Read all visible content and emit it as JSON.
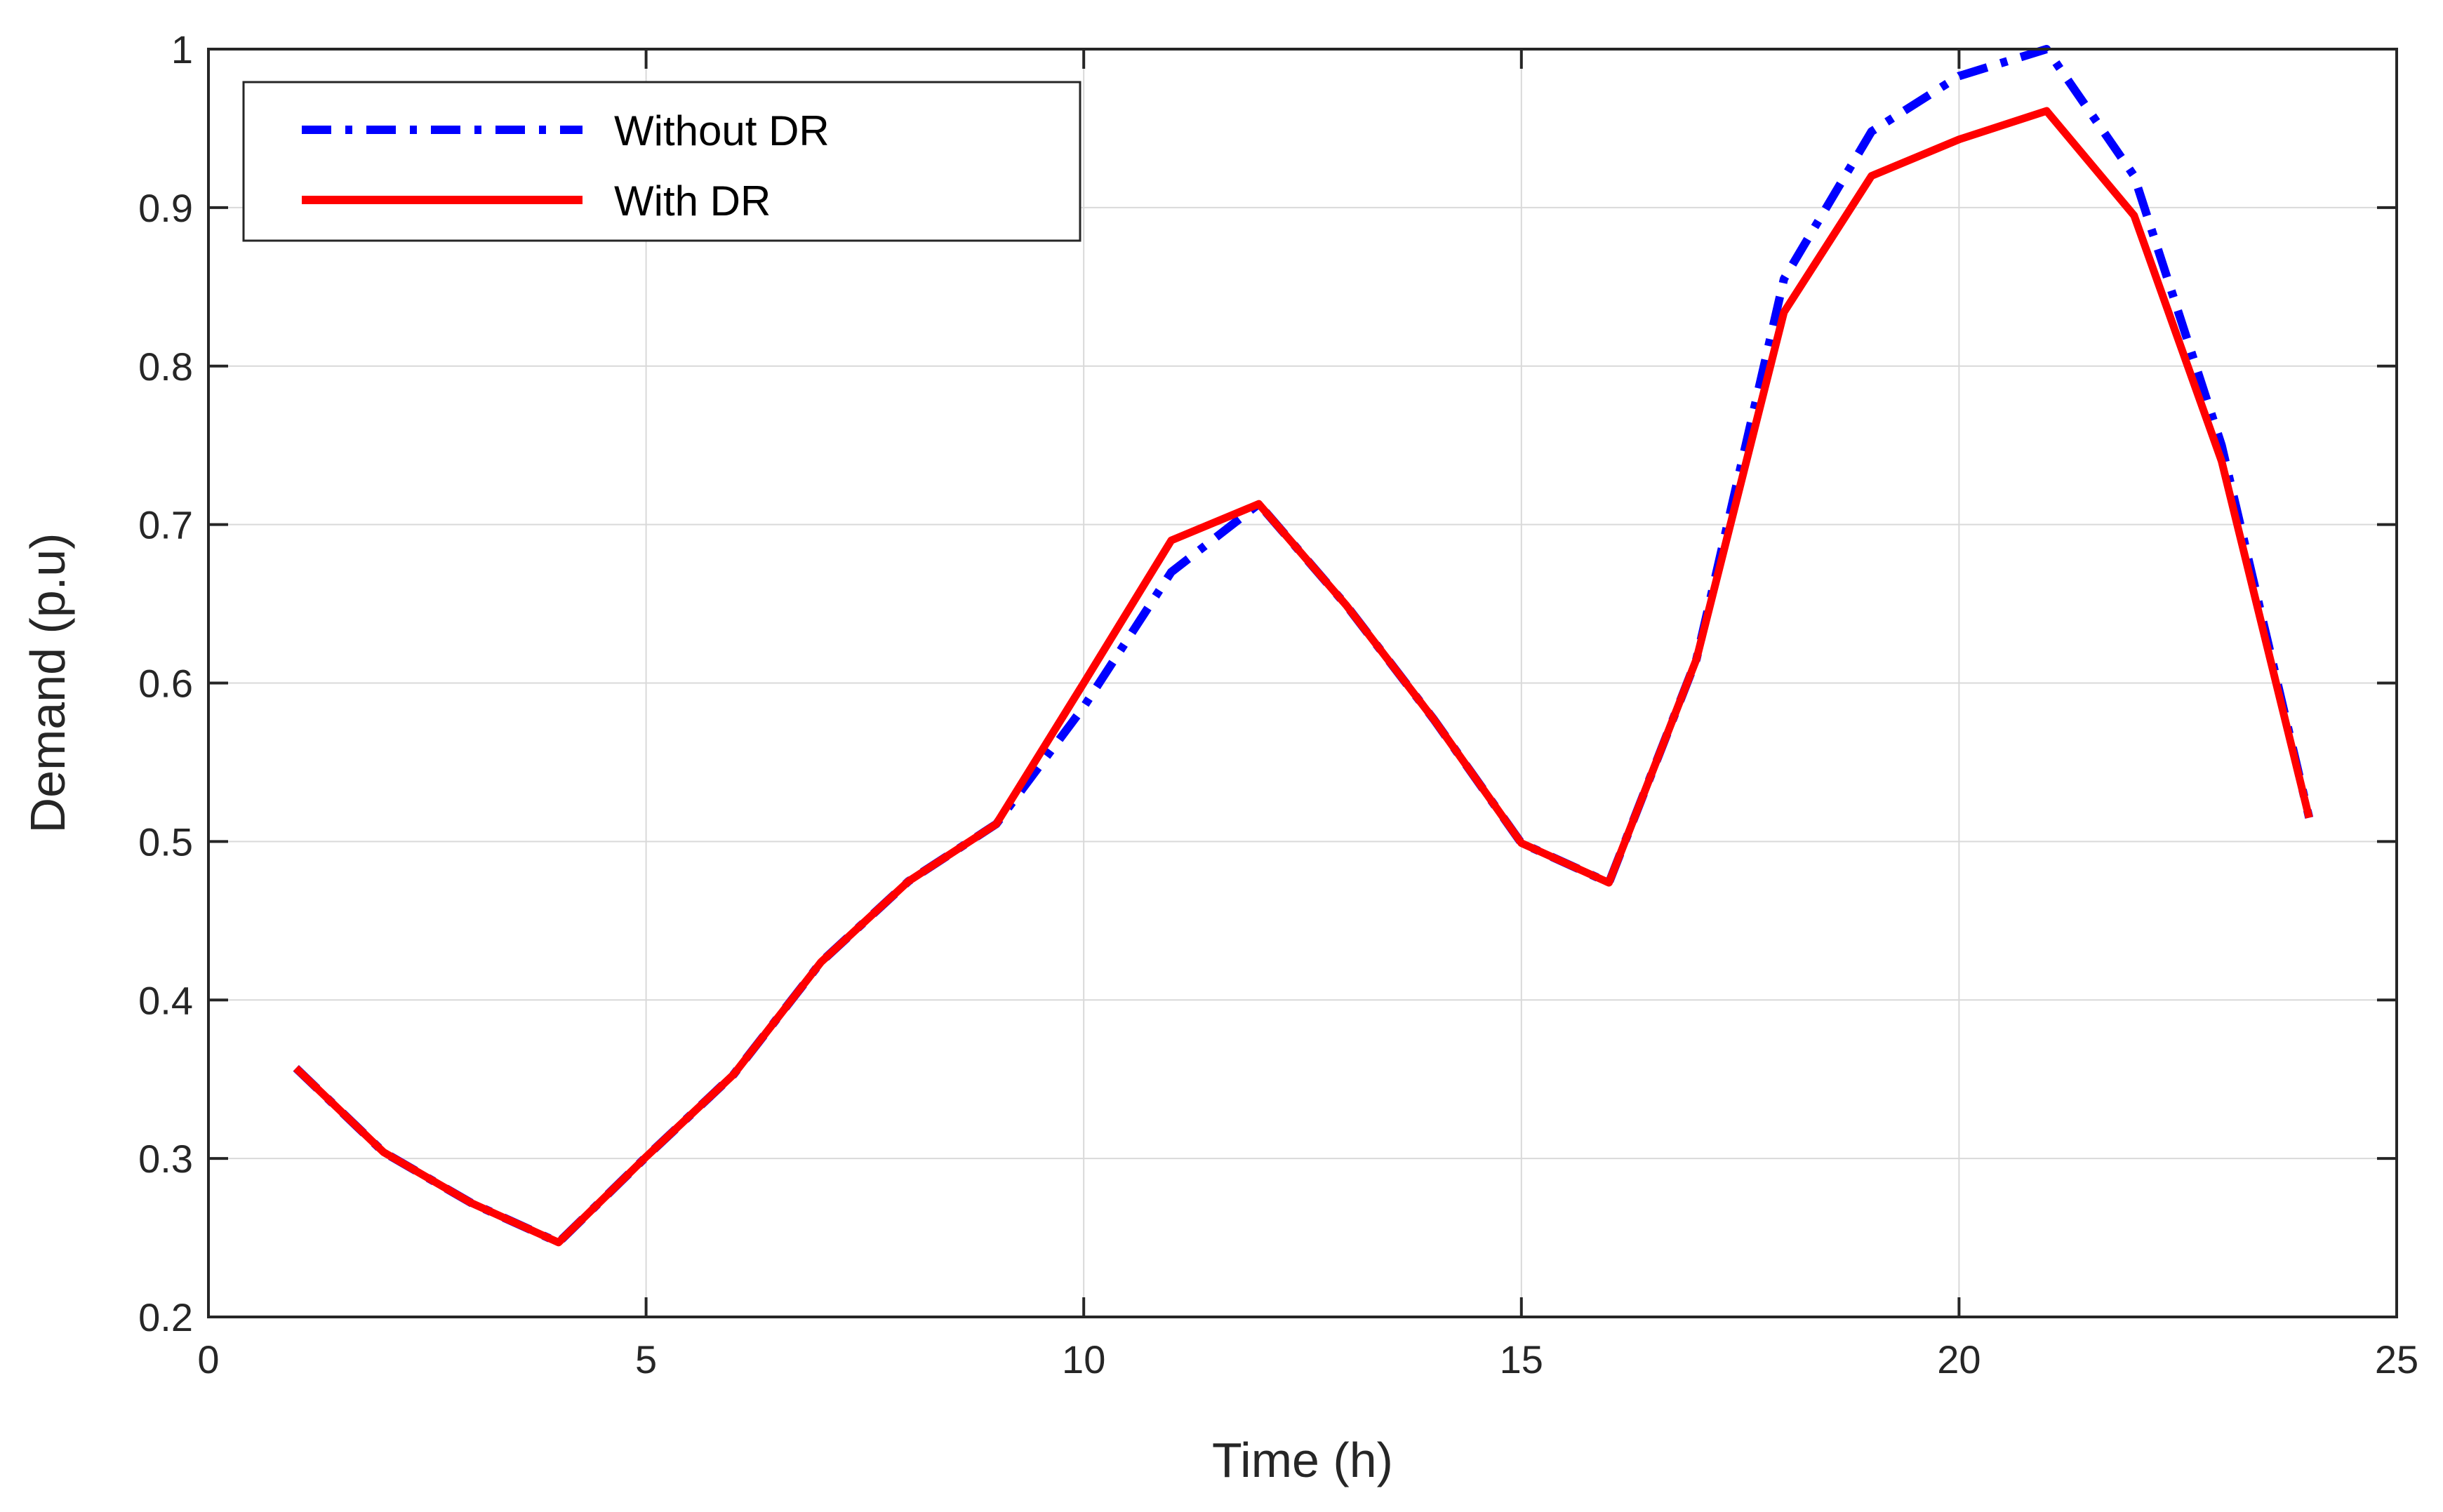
{
  "chart_data": {
    "type": "line",
    "title": "",
    "xlabel": "Time (h)",
    "ylabel": "Demand (p.u)",
    "xlim": [
      0,
      25
    ],
    "ylim": [
      0.2,
      1
    ],
    "xticks": [
      0,
      5,
      10,
      15,
      20,
      25
    ],
    "yticks": [
      0.2,
      0.3,
      0.4,
      0.5,
      0.6,
      0.7,
      0.8,
      0.9,
      1
    ],
    "xtick_labels": [
      "0",
      "5",
      "10",
      "15",
      "20",
      "25"
    ],
    "ytick_labels": [
      "0.2",
      "0.3",
      "0.4",
      "0.5",
      "0.6",
      "0.7",
      "0.8",
      "0.9",
      "1"
    ],
    "grid": true,
    "legend_position": "top-left",
    "x": [
      1,
      2,
      3,
      4,
      5,
      6,
      7,
      8,
      9,
      10,
      11,
      12,
      13,
      14,
      15,
      16,
      17,
      18,
      19,
      20,
      21,
      22,
      23,
      24
    ],
    "series": [
      {
        "name": "Without DR",
        "color": "#0000ff",
        "style": "dash-dot",
        "values": [
          0.357,
          0.304,
          0.272,
          0.247,
          0.301,
          0.353,
          0.424,
          0.475,
          0.511,
          0.585,
          0.67,
          0.713,
          0.649,
          0.577,
          0.499,
          0.474,
          0.615,
          0.855,
          0.948,
          0.983,
          1.0,
          0.92,
          0.75,
          0.515
        ]
      },
      {
        "name": "With DR",
        "color": "#ff0000",
        "style": "solid",
        "values": [
          0.357,
          0.304,
          0.272,
          0.247,
          0.301,
          0.353,
          0.424,
          0.475,
          0.511,
          0.6,
          0.69,
          0.713,
          0.649,
          0.577,
          0.499,
          0.474,
          0.615,
          0.834,
          0.92,
          0.943,
          0.961,
          0.895,
          0.74,
          0.515
        ]
      }
    ]
  }
}
